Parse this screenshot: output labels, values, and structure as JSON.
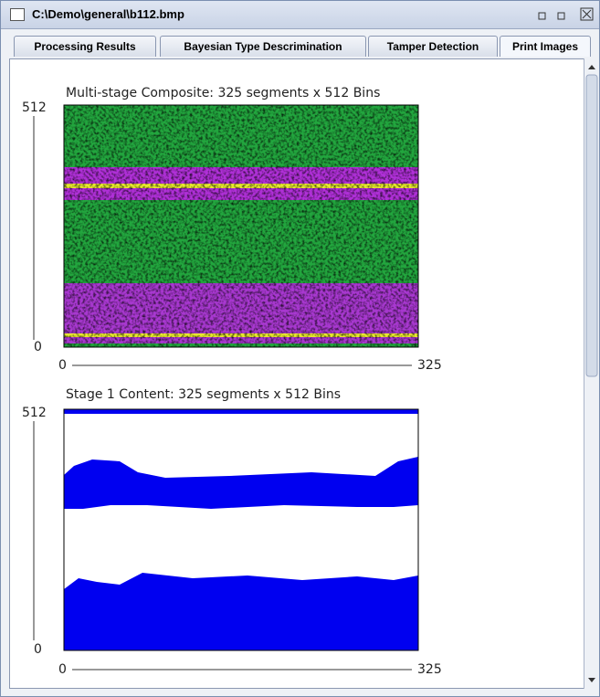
{
  "window": {
    "title": "C:\\Demo\\general\\b112.bmp"
  },
  "tabs": [
    "Processing Results",
    "Bayesian Type Descrimination",
    "Tamper Detection",
    "Print Images"
  ],
  "plots": [
    {
      "title": "Multi-stage Composite: 325 segments x 512 Bins",
      "y_top": 512,
      "y_bottom": 0,
      "x_left": 0,
      "x_right": 325
    },
    {
      "title": "Stage 1 Content: 325 segments x 512 Bins",
      "y_top": 512,
      "y_bottom": 0,
      "x_left": 0,
      "x_right": 325
    }
  ]
}
